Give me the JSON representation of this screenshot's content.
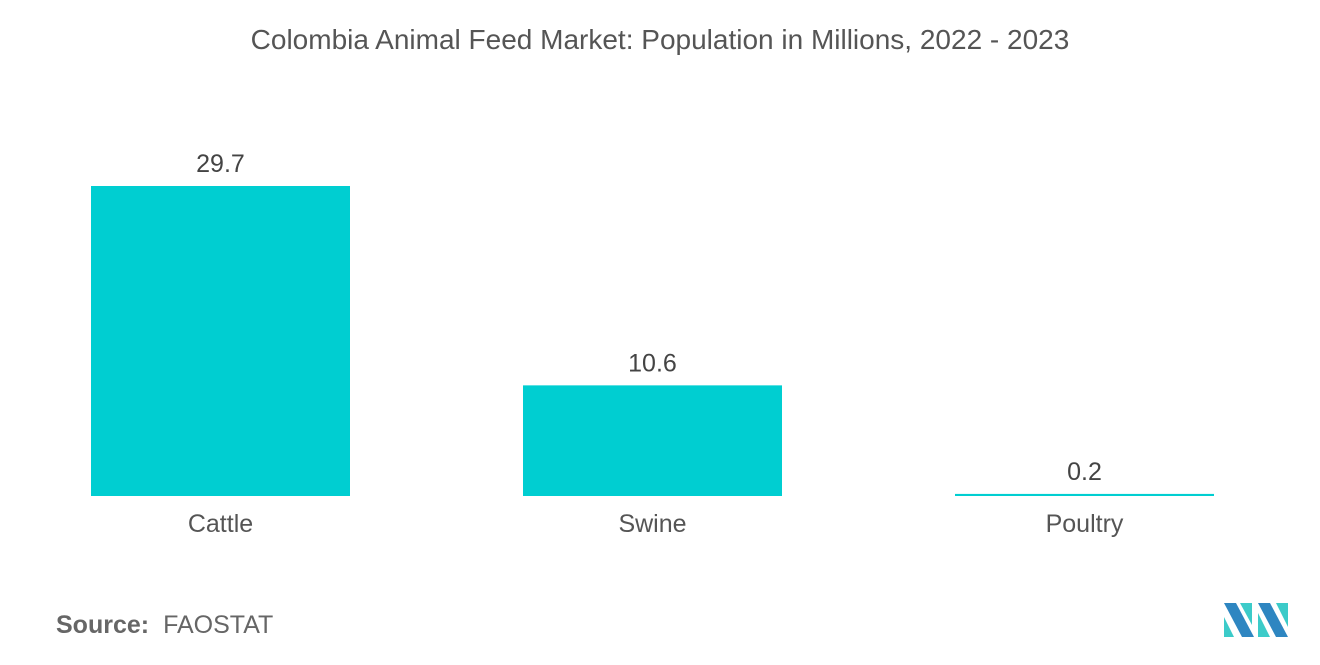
{
  "chart_data": {
    "type": "bar",
    "title": "Colombia Animal Feed Market: Population in Millions, 2022 - 2023",
    "categories": [
      "Cattle",
      "Swine",
      "Poultry"
    ],
    "values": [
      29.7,
      10.6,
      0.2
    ],
    "data_labels": [
      "29.7",
      "10.6",
      "0.2"
    ],
    "xlabel": "",
    "ylabel": "",
    "ylim": [
      0,
      29.7
    ],
    "grid": false,
    "legend": "none",
    "bar_color": "#00CED1"
  },
  "source": {
    "label": "Source:",
    "value": "FAOSTAT"
  },
  "logo": {
    "colors": [
      "#2E86C1",
      "#3CCBC9"
    ]
  }
}
